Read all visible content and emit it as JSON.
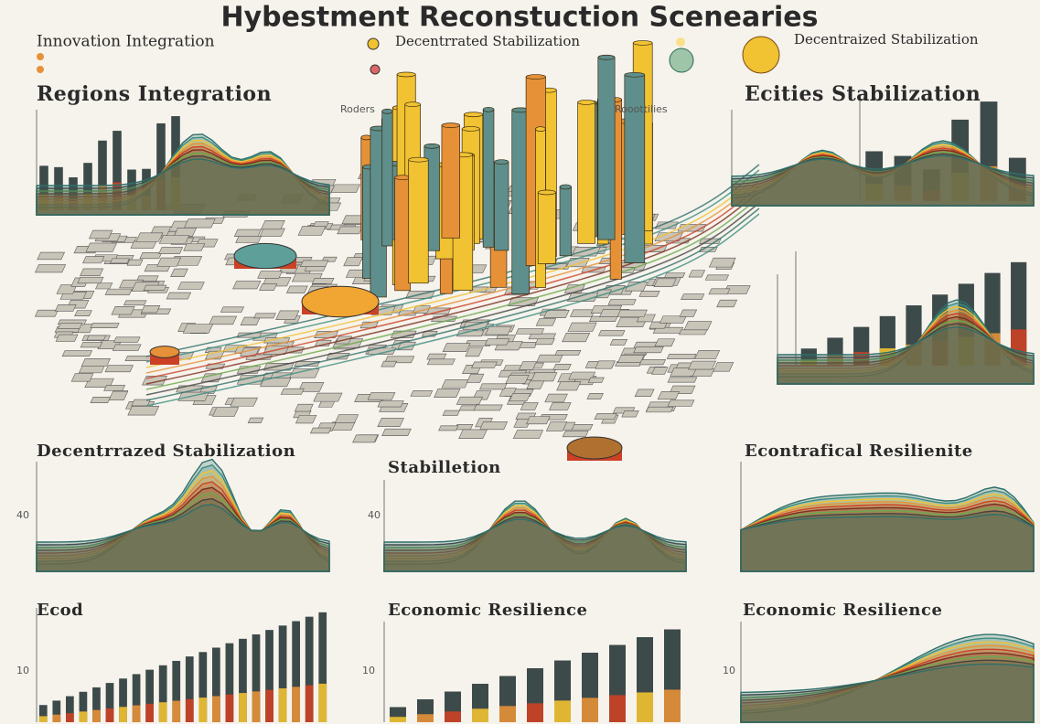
{
  "header": {
    "title": "Hybestment Reconstuction Scenearies"
  },
  "legend": [
    {
      "label": "Innovation Integration"
    },
    {
      "label": "Decentrrated Stabilization"
    },
    {
      "label": "Decentraized Stabilization"
    }
  ],
  "panels": [
    {
      "title": "Regions Integration"
    },
    {
      "title": "Ecities Stabilization"
    },
    {
      "title": "Decentrrazed Stabilization",
      "tick": "40"
    },
    {
      "title": "Stabilletion",
      "tick": "40"
    },
    {
      "title": "Econtrafical Resilienite"
    },
    {
      "title": "Ecod",
      "tick": "10"
    },
    {
      "title": "Economic Resilience",
      "tick": "10"
    },
    {
      "title": "Economic Resilience",
      "tick": "10"
    }
  ],
  "map_labels": [
    "Roders",
    "Rooottilies"
  ]
}
